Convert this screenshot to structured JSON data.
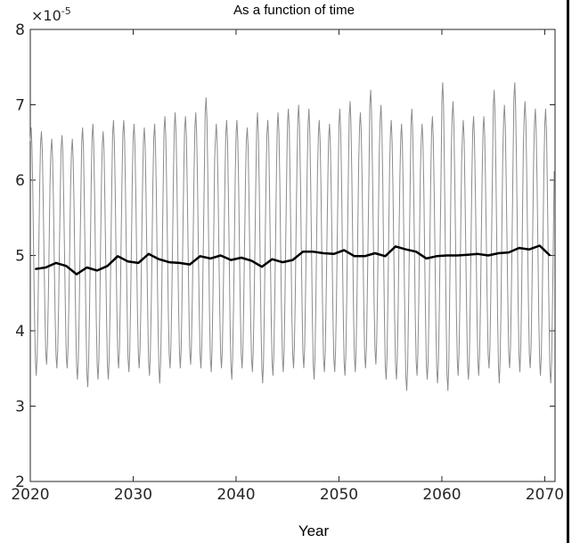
{
  "chart_data": {
    "type": "line",
    "title": "As a function of time",
    "xlabel": "Year",
    "ylabel": "",
    "y_multiplier": "×10",
    "y_multiplier_exp": "-5",
    "xlim": [
      2020,
      2071
    ],
    "ylim": [
      2,
      8
    ],
    "x_ticks": [
      2020,
      2030,
      2040,
      2050,
      2060,
      2070
    ],
    "x_tick_labels": [
      "2020",
      "2030",
      "2040",
      "2050",
      "2060",
      "2070"
    ],
    "y_ticks": [
      2,
      3,
      4,
      5,
      6,
      7,
      8
    ],
    "y_tick_labels": [
      "2",
      "3",
      "4",
      "5",
      "6",
      "7",
      "8"
    ],
    "grid": false,
    "series": [
      {
        "style": "monthly",
        "color": "#8c8c8c",
        "period_years": 1,
        "peaks": [
          6.7,
          6.65,
          6.55,
          6.6,
          6.55,
          6.7,
          6.75,
          6.65,
          6.8,
          6.8,
          6.75,
          6.7,
          6.75,
          6.85,
          6.9,
          6.85,
          6.9,
          7.1,
          6.75,
          6.8,
          6.8,
          6.7,
          6.9,
          6.8,
          6.9,
          6.95,
          7.0,
          6.95,
          6.8,
          6.75,
          6.95,
          7.05,
          6.9,
          7.2,
          7.0,
          6.8,
          6.75,
          6.95,
          6.75,
          6.85,
          7.3,
          7.05,
          6.8,
          6.85,
          6.85,
          7.2,
          7.0,
          7.3,
          7.05,
          6.95,
          6.95
        ],
        "troughs": [
          3.4,
          3.55,
          3.5,
          3.5,
          3.35,
          3.25,
          3.35,
          3.35,
          3.5,
          3.45,
          3.5,
          3.4,
          3.3,
          3.5,
          3.5,
          3.55,
          3.5,
          3.45,
          3.5,
          3.35,
          3.5,
          3.45,
          3.3,
          3.4,
          3.45,
          3.5,
          3.5,
          3.35,
          3.45,
          3.45,
          3.4,
          3.45,
          3.5,
          3.55,
          3.35,
          3.35,
          3.2,
          3.4,
          3.35,
          3.3,
          3.2,
          3.4,
          3.35,
          3.4,
          3.5,
          3.3,
          3.5,
          3.45,
          3.5,
          3.4,
          3.3
        ]
      },
      {
        "style": "annual_mean",
        "color": "#000000",
        "x": [
          2020.5,
          2021.5,
          2022.5,
          2023.5,
          2024.5,
          2025.5,
          2026.5,
          2027.5,
          2028.5,
          2029.5,
          2030.5,
          2031.5,
          2032.5,
          2033.5,
          2034.5,
          2035.5,
          2036.5,
          2037.5,
          2038.5,
          2039.5,
          2040.5,
          2041.5,
          2042.5,
          2043.5,
          2044.5,
          2045.5,
          2046.5,
          2047.5,
          2048.5,
          2049.5,
          2050.5,
          2051.5,
          2052.5,
          2053.5,
          2054.5,
          2055.5,
          2056.5,
          2057.5,
          2058.5,
          2059.5,
          2060.5,
          2061.5,
          2062.5,
          2063.5,
          2064.5,
          2065.5,
          2066.5,
          2067.5,
          2068.5,
          2069.5,
          2070.5
        ],
        "y": [
          4.82,
          4.84,
          4.9,
          4.86,
          4.75,
          4.84,
          4.8,
          4.86,
          4.99,
          4.92,
          4.9,
          5.02,
          4.95,
          4.91,
          4.9,
          4.88,
          4.99,
          4.96,
          5.0,
          4.94,
          4.97,
          4.93,
          4.85,
          4.95,
          4.91,
          4.94,
          5.05,
          5.05,
          5.03,
          5.02,
          5.07,
          4.99,
          4.99,
          5.03,
          4.99,
          5.12,
          5.08,
          5.05,
          4.96,
          4.99,
          5.0,
          5.0,
          5.01,
          5.02,
          5.0,
          5.03,
          5.04,
          5.1,
          5.08,
          5.13,
          5.0
        ]
      }
    ]
  }
}
